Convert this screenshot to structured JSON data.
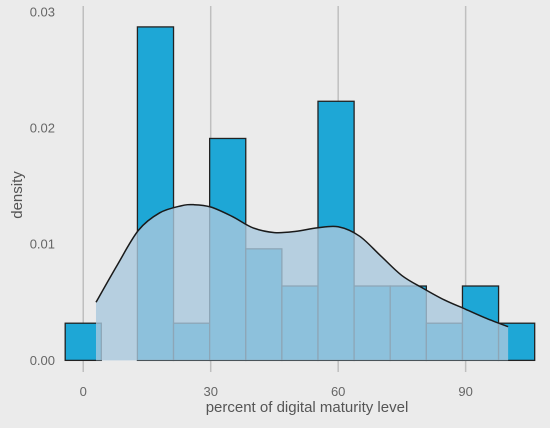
{
  "chart_data": {
    "type": "histogram",
    "xlabel": "percent of digital maturity level",
    "ylabel": "density",
    "xlim": [
      -5,
      107.5
    ],
    "ylim": [
      -0.001,
      0.0305
    ],
    "x_ticks": [
      0,
      30,
      60,
      90
    ],
    "y_ticks": [
      0.0,
      0.01,
      0.02,
      0.03
    ],
    "x_tick_labels": [
      "0",
      "30",
      "60",
      "90"
    ],
    "y_tick_labels": [
      "0.00",
      "0.01",
      "0.02",
      "0.03"
    ],
    "grid": "vertical major lines only",
    "bins": [
      {
        "x0": -4.25,
        "x1": 4.25,
        "density": 0.0032
      },
      {
        "x0": 4.25,
        "x1": 12.75,
        "density": 0
      },
      {
        "x0": 12.75,
        "x1": 21.25,
        "density": 0.0287
      },
      {
        "x0": 21.25,
        "x1": 29.75,
        "density": 0.0032
      },
      {
        "x0": 29.75,
        "x1": 38.25,
        "density": 0.0191
      },
      {
        "x0": 38.25,
        "x1": 46.75,
        "density": 0.0096
      },
      {
        "x0": 46.75,
        "x1": 55.25,
        "density": 0.0064
      },
      {
        "x0": 55.25,
        "x1": 63.75,
        "density": 0.0223
      },
      {
        "x0": 63.75,
        "x1": 72.25,
        "density": 0.0064
      },
      {
        "x0": 72.25,
        "x1": 80.75,
        "density": 0.0064
      },
      {
        "x0": 80.75,
        "x1": 89.25,
        "density": 0.0032
      },
      {
        "x0": 89.25,
        "x1": 97.75,
        "density": 0.0064
      },
      {
        "x0": 97.75,
        "x1": 106.25,
        "density": 0.0032
      }
    ],
    "density_curve": {
      "x": [
        3,
        8,
        13,
        18,
        23,
        26,
        30,
        35,
        40,
        45,
        50,
        55,
        60,
        65,
        70,
        75,
        80,
        85,
        90,
        95,
        100
      ],
      "y": [
        0.005,
        0.0082,
        0.0112,
        0.0127,
        0.0133,
        0.0134,
        0.0132,
        0.0124,
        0.0114,
        0.011,
        0.0111,
        0.0114,
        0.0115,
        0.0107,
        0.009,
        0.0073,
        0.0062,
        0.0052,
        0.0044,
        0.0036,
        0.0029
      ]
    },
    "colors": {
      "background": "#ebebeb",
      "grid": "#bfbfbf",
      "bar_fill": "#1ea7d6",
      "bar_stroke": "#222222",
      "density_fill": "#a9c8dd",
      "density_line": "#1a1a1a"
    }
  }
}
